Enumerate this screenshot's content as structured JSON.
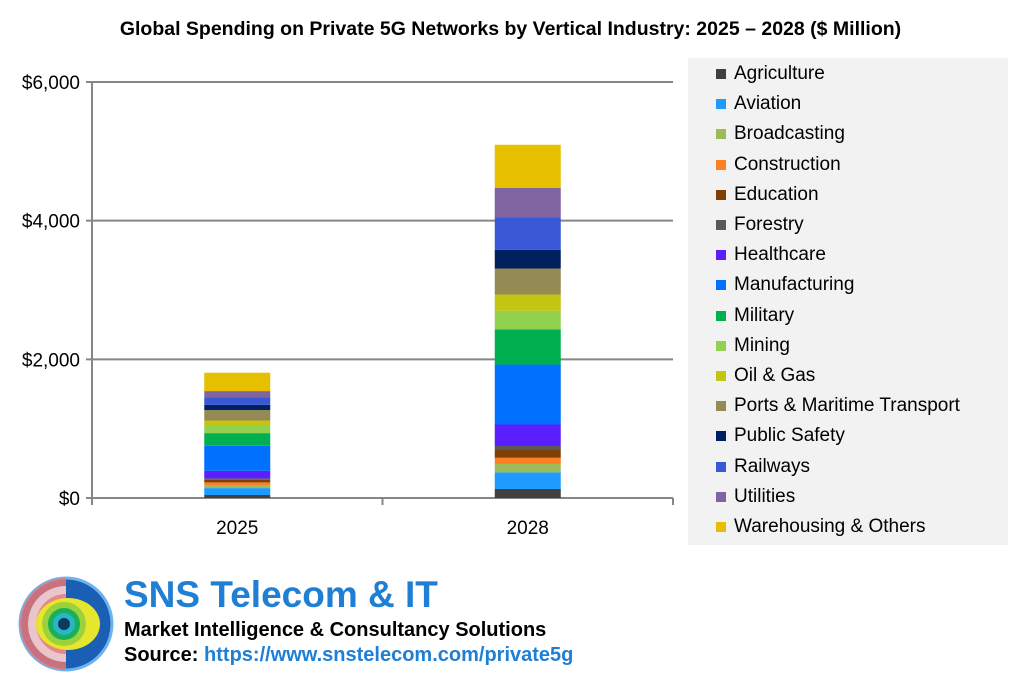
{
  "chart_data": {
    "type": "stacked-bar",
    "title": "Global Spending on Private 5G Networks by Vertical Industry: 2025 – 2028 ($ Million)",
    "categories": [
      "2025",
      "2028"
    ],
    "ylim": [
      0,
      6000
    ],
    "yticks": [
      0,
      2000,
      4000,
      6000
    ],
    "ytick_labels": [
      "$0",
      "$2,000",
      "$4,000",
      "$6,000"
    ],
    "grid": true,
    "legend_position": "right",
    "series": [
      {
        "name": "Agriculture",
        "color": "#404040",
        "values": [
          43,
          130
        ]
      },
      {
        "name": "Aviation",
        "color": "#1f9bff",
        "values": [
          100,
          240
        ]
      },
      {
        "name": "Broadcasting",
        "color": "#9bbb59",
        "values": [
          33,
          120
        ]
      },
      {
        "name": "Construction",
        "color": "#ff7f27",
        "values": [
          49,
          90
        ]
      },
      {
        "name": "Education",
        "color": "#7f3f00",
        "values": [
          38,
          120
        ]
      },
      {
        "name": "Forestry",
        "color": "#595959",
        "values": [
          20,
          50
        ]
      },
      {
        "name": "Healthcare",
        "color": "#5b1fff",
        "values": [
          110,
          310
        ]
      },
      {
        "name": "Manufacturing",
        "color": "#0070ff",
        "values": [
          360,
          865
        ]
      },
      {
        "name": "Military",
        "color": "#00b050",
        "values": [
          183,
          505
        ]
      },
      {
        "name": "Mining",
        "color": "#92d050",
        "values": [
          110,
          270
        ]
      },
      {
        "name": "Oil & Gas",
        "color": "#c4c412",
        "values": [
          72,
          235
        ]
      },
      {
        "name": "Ports & Maritime Transport",
        "color": "#948a54",
        "values": [
          150,
          375
        ]
      },
      {
        "name": "Public Safety",
        "color": "#002060",
        "values": [
          77,
          270
        ]
      },
      {
        "name": "Railways",
        "color": "#3858d6",
        "values": [
          110,
          465
        ]
      },
      {
        "name": "Utilities",
        "color": "#8064a2",
        "values": [
          87,
          430
        ]
      },
      {
        "name": "Warehousing & Others",
        "color": "#e6c000",
        "values": [
          265,
          620
        ]
      }
    ]
  },
  "footer": {
    "brand": "SNS Telecom & IT",
    "tagline": "Market Intelligence & Consultancy Solutions",
    "source_label": "Source:",
    "source_url": "https://www.snstelecom.com/private5g"
  }
}
